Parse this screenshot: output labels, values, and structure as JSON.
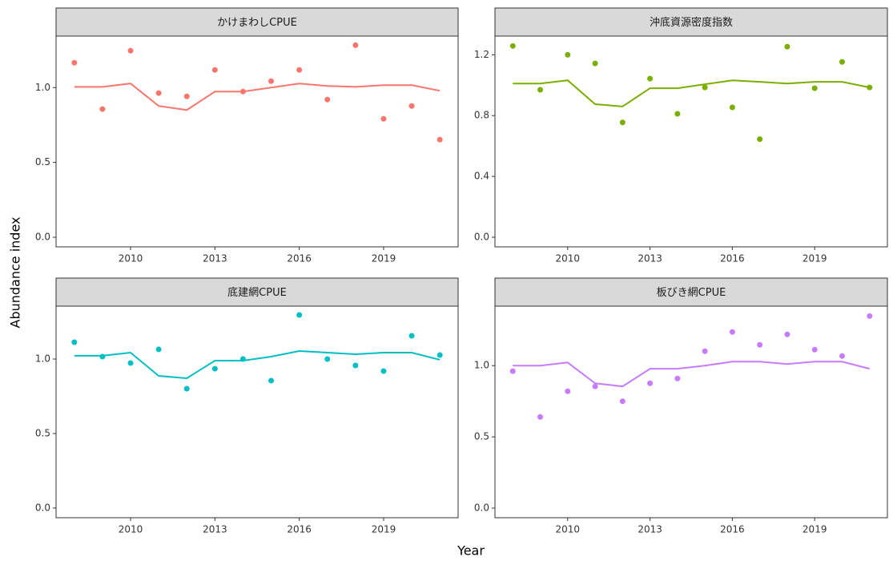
{
  "xlabel": "Year",
  "ylabel": "Abundance index",
  "chart_data": [
    {
      "type": "line",
      "title": "かけまわしCPUE",
      "x": [
        2008,
        2009,
        2010,
        2011,
        2012,
        2013,
        2014,
        2015,
        2016,
        2017,
        2018,
        2019,
        2020,
        2021
      ],
      "xlim": [
        2007.35,
        2021.65
      ],
      "xticks": [
        2010,
        2013,
        2016,
        2019
      ],
      "ylim": [
        -0.064,
        1.344
      ],
      "yticks": [
        {
          "value": 0,
          "label": "0.0"
        },
        {
          "value": 0.5,
          "label": "0.5"
        },
        {
          "value": 1,
          "label": "1.0"
        }
      ],
      "series": [
        {
          "style": "points",
          "color": "#F8766D",
          "values": [
            1.166,
            0.856,
            1.246,
            0.963,
            0.941,
            1.118,
            0.973,
            1.043,
            1.118,
            0.92,
            1.283,
            0.791,
            0.877,
            0.652
          ]
        },
        {
          "style": "line",
          "color": "#F8766D",
          "values": [
            1.005,
            1.005,
            1.027,
            0.877,
            0.85,
            0.973,
            0.973,
            1.0,
            1.027,
            1.011,
            1.005,
            1.016,
            1.016,
            0.979
          ]
        }
      ]
    },
    {
      "type": "line",
      "title": "沖底資源密度指数",
      "x": [
        2008,
        2009,
        2010,
        2011,
        2012,
        2013,
        2014,
        2015,
        2016,
        2017,
        2018,
        2019,
        2020,
        2021
      ],
      "xlim": [
        2007.35,
        2021.65
      ],
      "xticks": [
        2010,
        2013,
        2016,
        2019
      ],
      "ylim": [
        -0.063,
        1.323
      ],
      "yticks": [
        {
          "value": 0,
          "label": "0.0"
        },
        0.4,
        0.8,
        1.2
      ],
      "series": [
        {
          "style": "points",
          "color": "#7CAE00",
          "values": [
            1.258,
            0.97,
            1.2,
            1.143,
            0.755,
            1.043,
            0.812,
            0.985,
            0.854,
            0.645,
            1.253,
            0.98,
            1.153,
            0.985
          ]
        },
        {
          "style": "line",
          "color": "#7CAE00",
          "values": [
            1.011,
            1.011,
            1.032,
            0.875,
            0.86,
            0.98,
            0.98,
            1.006,
            1.032,
            1.022,
            1.011,
            1.022,
            1.022,
            0.985
          ]
        }
      ]
    },
    {
      "type": "line",
      "title": "底建網CPUE",
      "x": [
        2008,
        2009,
        2010,
        2011,
        2012,
        2013,
        2014,
        2015,
        2016,
        2017,
        2018,
        2019,
        2020,
        2021
      ],
      "xlim": [
        2007.35,
        2021.65
      ],
      "xticks": [
        2010,
        2013,
        2016,
        2019
      ],
      "ylim": [
        -0.065,
        1.355
      ],
      "yticks": [
        {
          "value": 0,
          "label": "0.0"
        },
        {
          "value": 0.5,
          "label": "0.5"
        },
        {
          "value": 1,
          "label": "1.0"
        }
      ],
      "series": [
        {
          "style": "points",
          "color": "#00BFC4",
          "values": [
            1.113,
            1.016,
            0.973,
            1.065,
            0.801,
            0.935,
            1.0,
            0.855,
            1.296,
            1.0,
            0.957,
            0.919,
            1.156,
            1.027
          ]
        },
        {
          "style": "line",
          "color": "#00BFC4",
          "values": [
            1.022,
            1.022,
            1.043,
            0.887,
            0.871,
            0.989,
            0.989,
            1.016,
            1.054,
            1.043,
            1.032,
            1.043,
            1.043,
            0.995
          ]
        }
      ]
    },
    {
      "type": "line",
      "title": "板びき網CPUE",
      "x": [
        2008,
        2009,
        2010,
        2011,
        2012,
        2013,
        2014,
        2015,
        2016,
        2017,
        2018,
        2019,
        2020,
        2021
      ],
      "xlim": [
        2007.35,
        2021.65
      ],
      "xticks": [
        2010,
        2013,
        2016,
        2019
      ],
      "ylim": [
        -0.0675,
        1.4175
      ],
      "yticks": [
        {
          "value": 0,
          "label": "0.0"
        },
        {
          "value": 0.5,
          "label": "0.5"
        },
        {
          "value": 1,
          "label": "1.0"
        }
      ],
      "series": [
        {
          "style": "points",
          "color": "#C77CFF",
          "values": [
            0.961,
            0.64,
            0.82,
            0.854,
            0.75,
            0.876,
            0.91,
            1.101,
            1.236,
            1.146,
            1.219,
            1.112,
            1.067,
            1.348
          ]
        },
        {
          "style": "line",
          "color": "#C77CFF",
          "values": [
            1.0,
            1.0,
            1.022,
            0.876,
            0.854,
            0.978,
            0.978,
            1.0,
            1.028,
            1.028,
            1.011,
            1.028,
            1.028,
            0.978
          ]
        }
      ]
    }
  ]
}
